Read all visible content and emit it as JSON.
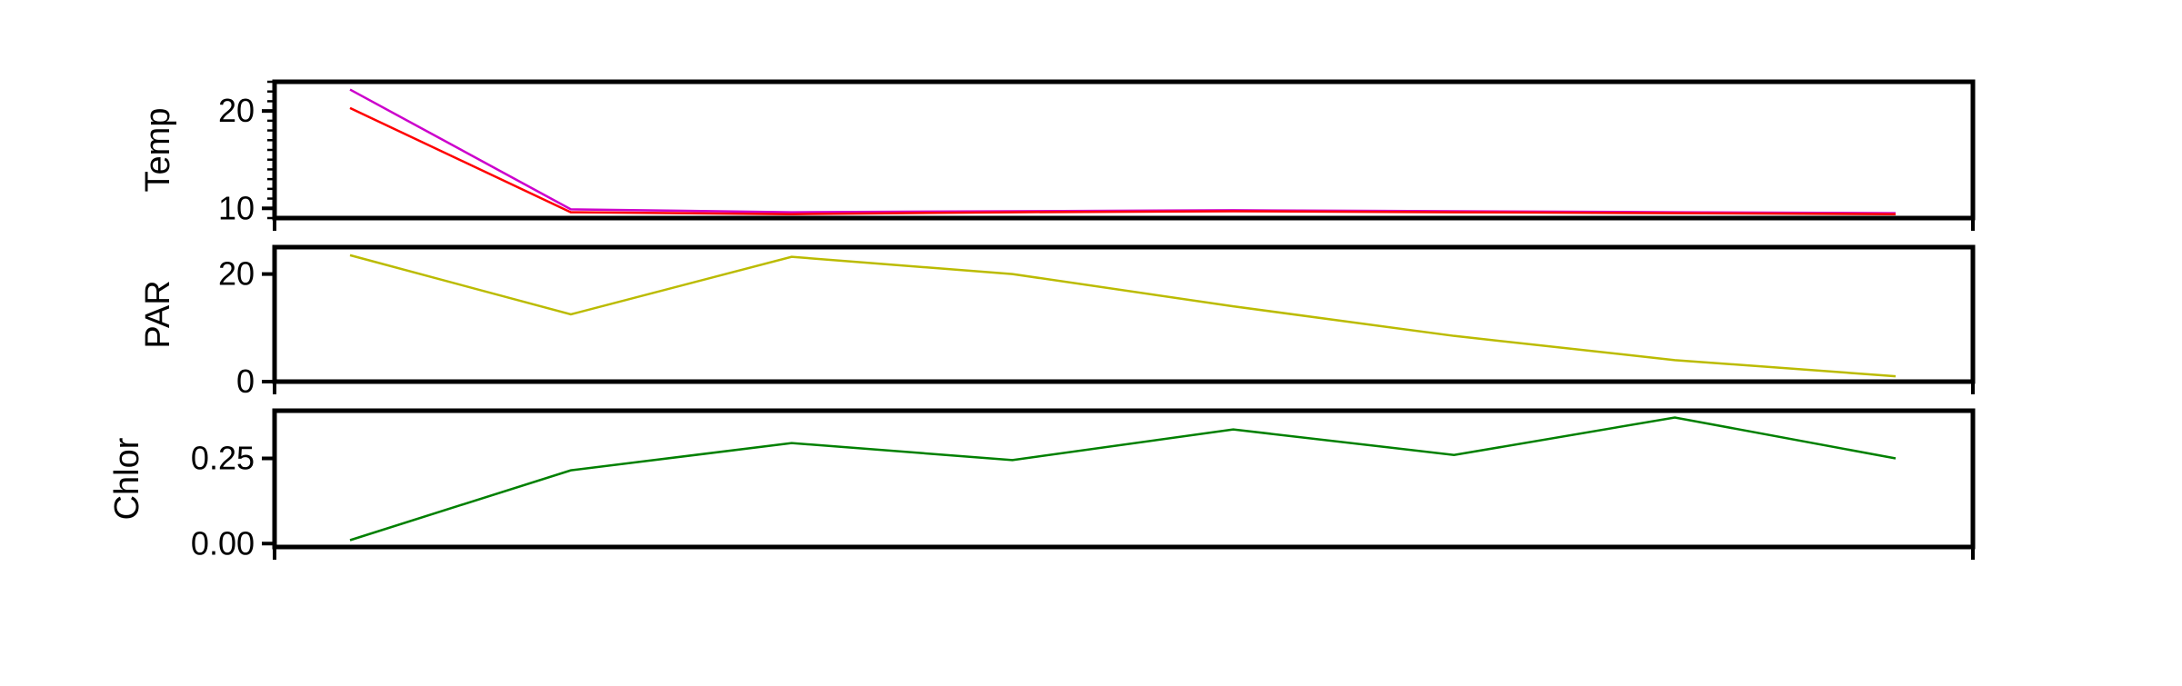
{
  "chart_data": [
    {
      "type": "line",
      "ylabel": "Temp",
      "ylim": [
        9.0,
        23.0
      ],
      "yticks": [
        10,
        20
      ],
      "ytick_labels": [
        "10",
        "20"
      ],
      "minor_ticks": true,
      "x": [
        1,
        2,
        3,
        4,
        5,
        6,
        7,
        8
      ],
      "series": [
        {
          "color": "#cc00cc",
          "values": [
            22.2,
            9.9,
            9.6,
            9.7,
            9.8,
            9.7,
            9.6,
            9.5
          ]
        },
        {
          "color": "#ff0000",
          "values": [
            20.3,
            9.6,
            9.4,
            9.6,
            9.7,
            9.6,
            9.5,
            9.4
          ]
        }
      ],
      "grid": false
    },
    {
      "type": "line",
      "ylabel": "PAR",
      "ylim": [
        0,
        25
      ],
      "yticks": [
        0,
        20
      ],
      "ytick_labels": [
        "0",
        "20"
      ],
      "x": [
        1,
        2,
        3,
        4,
        5,
        6,
        7,
        8
      ],
      "series": [
        {
          "color": "#bbbb00",
          "values": [
            23.5,
            12.5,
            23.2,
            20.0,
            14.0,
            8.5,
            4.0,
            1.0
          ]
        }
      ],
      "grid": false
    },
    {
      "type": "line",
      "ylabel": "Chlor",
      "ylim": [
        -0.01,
        0.39
      ],
      "yticks": [
        0.0,
        0.25
      ],
      "ytick_labels": [
        "0.00",
        "0.25"
      ],
      "x": [
        1,
        2,
        3,
        4,
        5,
        6,
        7,
        8
      ],
      "series": [
        {
          "color": "#008000",
          "values": [
            0.01,
            0.215,
            0.295,
            0.245,
            0.335,
            0.26,
            0.37,
            0.25
          ]
        }
      ],
      "grid": false
    }
  ]
}
